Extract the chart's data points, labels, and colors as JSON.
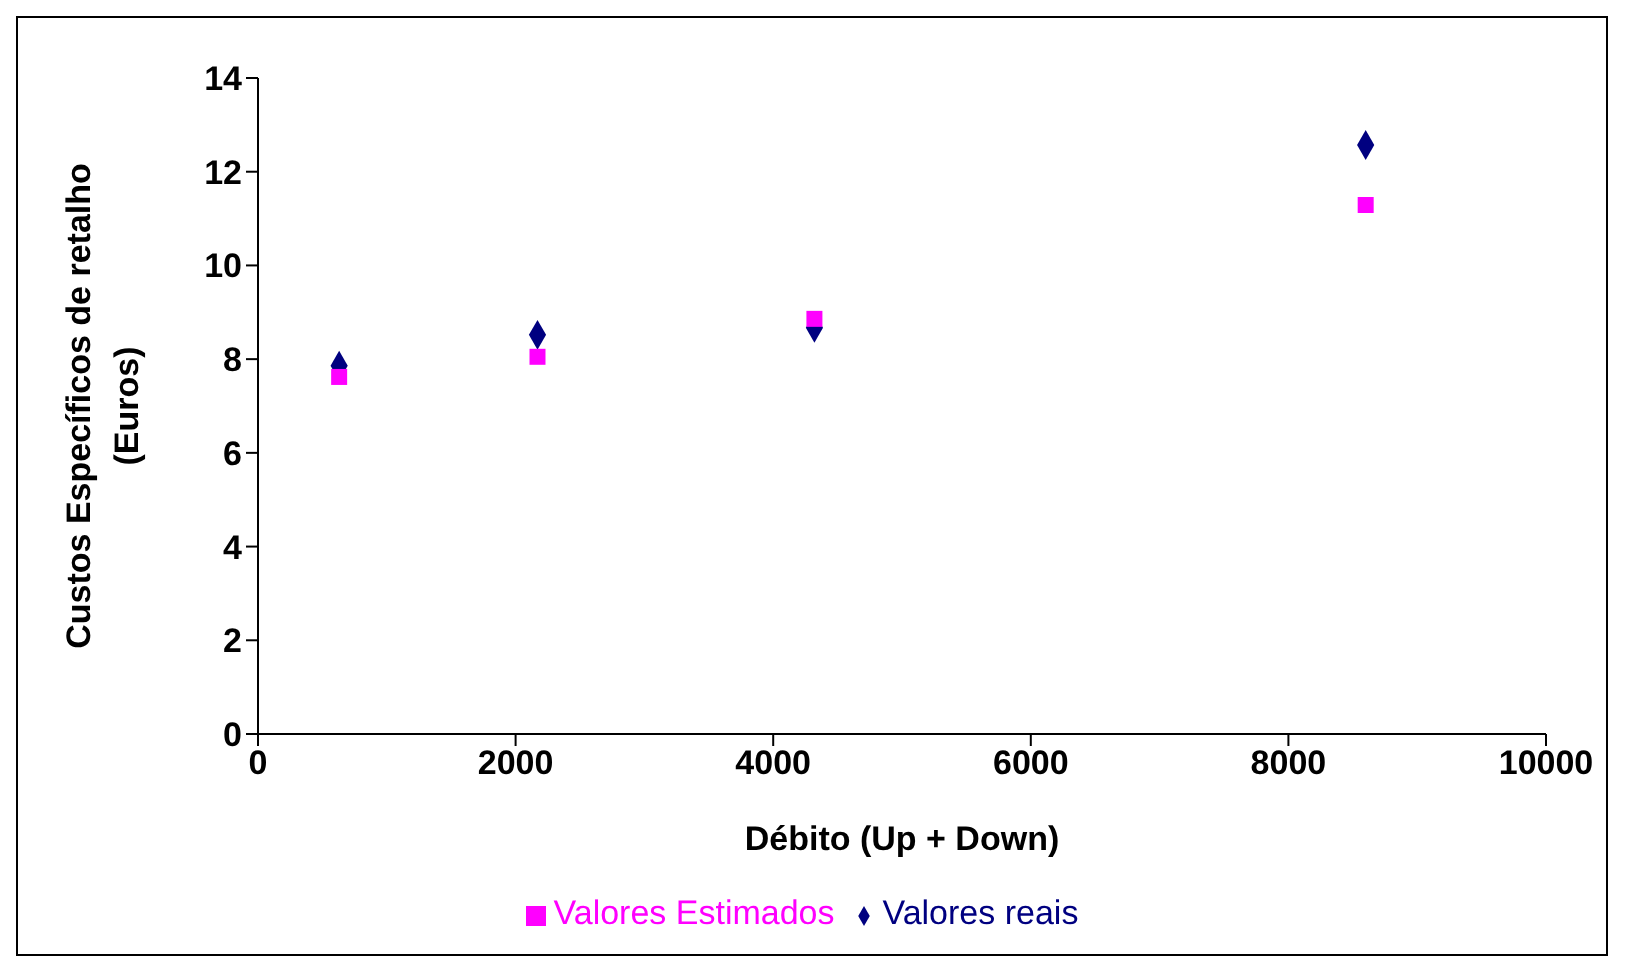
{
  "chart_data": {
    "type": "scatter",
    "xlabel": "Débito (Up + Down)",
    "ylabel": "Custos Específicos de retalho (Euros)",
    "xlim": [
      0,
      10000
    ],
    "xticks": [
      0,
      2000,
      4000,
      6000,
      8000,
      10000
    ],
    "ylim": [
      0,
      14
    ],
    "yticks": [
      0,
      2,
      4,
      6,
      8,
      10,
      12,
      14
    ],
    "grid": false,
    "legend": "bottom",
    "series": [
      {
        "name": "Valores reais",
        "color": "#000080",
        "marker": "diamond",
        "x": [
          630,
          2170,
          4320,
          8600
        ],
        "values": [
          7.86,
          8.52,
          8.67,
          12.57
        ]
      },
      {
        "name": "Valores Estimados",
        "color": "#ff00ff",
        "marker": "square",
        "x": [
          630,
          2170,
          4320,
          8600
        ],
        "values": [
          7.62,
          8.05,
          8.86,
          11.29
        ]
      }
    ]
  }
}
